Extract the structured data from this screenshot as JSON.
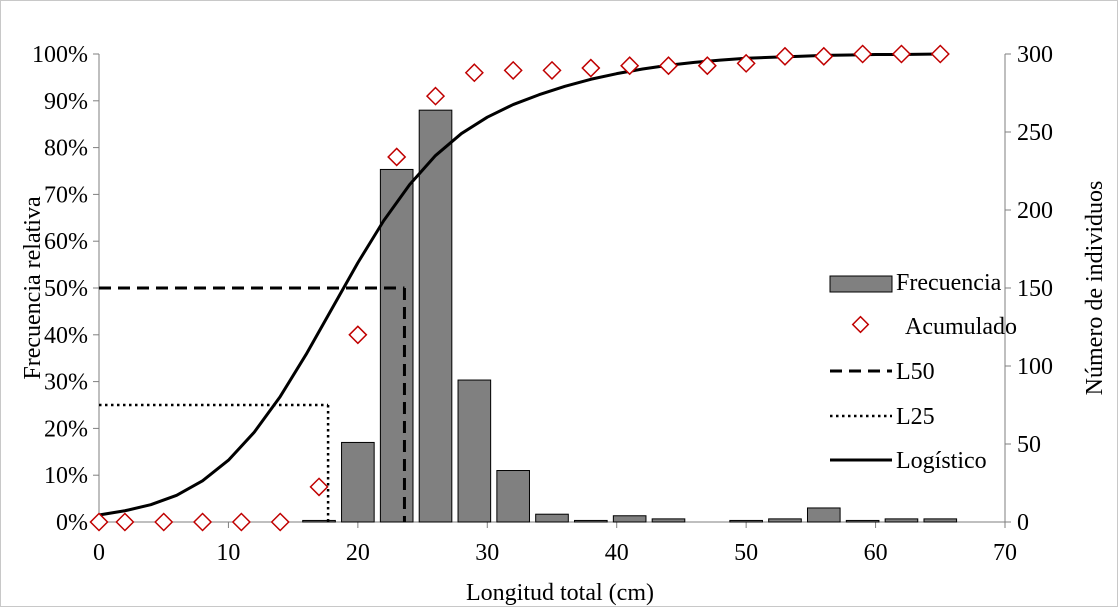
{
  "chart_data": {
    "type": "bar",
    "xlabel": "Longitud total (cm)",
    "ylabel": "Frecuencia relativa",
    "y2label": "Número de individuos",
    "xlim": [
      0,
      70
    ],
    "ylim": [
      0,
      1
    ],
    "y2lim": [
      0,
      300
    ],
    "xticks": [
      "0",
      "10",
      "20",
      "30",
      "40",
      "50",
      "60",
      "70"
    ],
    "yticks": [
      "0%",
      "10%",
      "20%",
      "30%",
      "40%",
      "50%",
      "60%",
      "70%",
      "80%",
      "90%",
      "100%"
    ],
    "y2ticks": [
      "0",
      "50",
      "100",
      "150",
      "200",
      "250",
      "300"
    ],
    "grid": false,
    "legend_position": "right",
    "legend": {
      "frecuencia": "Frecuencia",
      "acumulado": "Acumulado",
      "l50": "L50",
      "l25": "L25",
      "logistico": "Logístico"
    },
    "series": [
      {
        "name": "Frecuencia",
        "kind": "bar",
        "axis": "right",
        "color": "#808080",
        "x": [
          17,
          20,
          23,
          26,
          29,
          32,
          35,
          38,
          41,
          44,
          50,
          53,
          56,
          59,
          62,
          65
        ],
        "values": [
          1,
          51,
          226,
          264,
          91,
          33,
          5,
          1,
          4,
          2,
          1,
          2,
          9,
          1,
          2,
          2
        ]
      },
      {
        "name": "Acumulado",
        "kind": "scatter",
        "axis": "left",
        "color": "#c00000",
        "x": [
          0,
          2,
          5,
          8,
          11,
          14,
          17,
          20,
          23,
          26,
          29,
          32,
          35,
          38,
          41,
          44,
          47,
          50,
          53,
          56,
          59,
          62,
          65
        ],
        "values": [
          0.0,
          0.0,
          0.0,
          0.0,
          0.0,
          0.0,
          0.075,
          0.4,
          0.78,
          0.91,
          0.96,
          0.965,
          0.965,
          0.97,
          0.975,
          0.975,
          0.975,
          0.98,
          0.995,
          0.995,
          1.0,
          1.0,
          1.0
        ]
      },
      {
        "name": "L50",
        "kind": "reference",
        "axis": "left",
        "x": 23.6,
        "y": 0.5
      },
      {
        "name": "L25",
        "kind": "reference",
        "axis": "left",
        "x": 17.7,
        "y": 0.25
      },
      {
        "name": "Logístico",
        "kind": "line",
        "axis": "left",
        "x": [
          0,
          2,
          4,
          6,
          8,
          10,
          12,
          14,
          16,
          18,
          20,
          22,
          24,
          26,
          28,
          30,
          32,
          34,
          36,
          38,
          40,
          42,
          44,
          46,
          48,
          50,
          52,
          54,
          56,
          58,
          60,
          62,
          65
        ],
        "values": [
          0.015,
          0.024,
          0.037,
          0.057,
          0.088,
          0.132,
          0.192,
          0.268,
          0.358,
          0.456,
          0.554,
          0.644,
          0.721,
          0.783,
          0.83,
          0.865,
          0.892,
          0.913,
          0.931,
          0.946,
          0.958,
          0.968,
          0.976,
          0.982,
          0.987,
          0.991,
          0.993,
          0.995,
          0.997,
          0.998,
          0.999,
          0.999,
          1.0
        ]
      }
    ]
  }
}
